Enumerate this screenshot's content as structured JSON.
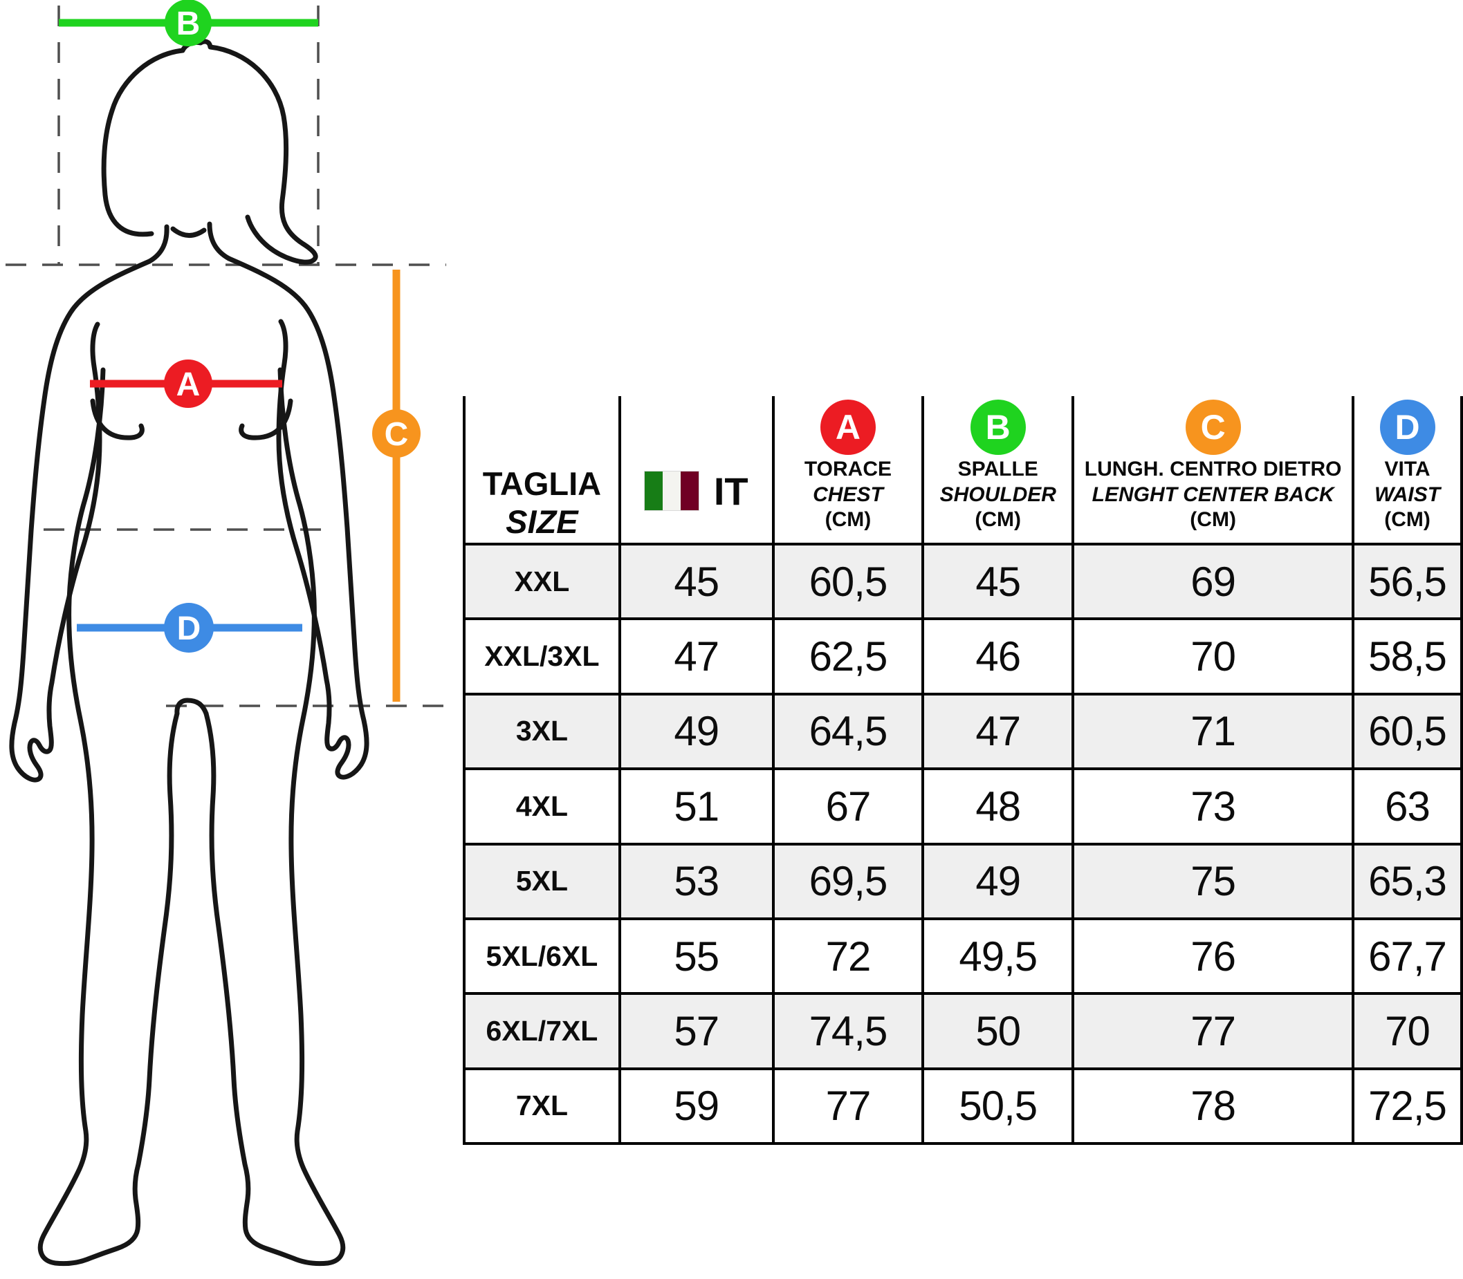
{
  "figure": {
    "labels": [
      {
        "id": "A",
        "color": "#EC1C23"
      },
      {
        "id": "B",
        "color": "#1FD31F"
      },
      {
        "id": "C",
        "color": "#F7941E"
      },
      {
        "id": "D",
        "color": "#3E8BE4"
      }
    ]
  },
  "table": {
    "header": {
      "size_label_it": "TAGLIA",
      "size_label_en": "SIZE",
      "country_code": "IT",
      "flag_colors": [
        "#177D16",
        "#F4F4F0",
        "#700024"
      ],
      "columns": [
        {
          "badge": "A",
          "badge_color": "#EC1C23",
          "title_it": "TORACE",
          "title_en": "CHEST",
          "unit": "(CM)"
        },
        {
          "badge": "B",
          "badge_color": "#1FD31F",
          "title_it": "SPALLE",
          "title_en": "SHOULDER",
          "unit": "(CM)"
        },
        {
          "badge": "C",
          "badge_color": "#F7941E",
          "title_it": "LUNGH. CENTRO DIETRO",
          "title_en": "LENGHT CENTER BACK",
          "unit": "(CM)"
        },
        {
          "badge": "D",
          "badge_color": "#3E8BE4",
          "title_it": "VITA",
          "title_en": "WAIST",
          "unit": "(CM)"
        }
      ]
    },
    "rows": [
      {
        "size": "XXL",
        "it": "45",
        "chest": "60,5",
        "shoulder": "45",
        "center_back": "69",
        "waist": "56,5"
      },
      {
        "size": "XXL/3XL",
        "it": "47",
        "chest": "62,5",
        "shoulder": "46",
        "center_back": "70",
        "waist": "58,5"
      },
      {
        "size": "3XL",
        "it": "49",
        "chest": "64,5",
        "shoulder": "47",
        "center_back": "71",
        "waist": "60,5"
      },
      {
        "size": "4XL",
        "it": "51",
        "chest": "67",
        "shoulder": "48",
        "center_back": "73",
        "waist": "63"
      },
      {
        "size": "5XL",
        "it": "53",
        "chest": "69,5",
        "shoulder": "49",
        "center_back": "75",
        "waist": "65,3"
      },
      {
        "size": "5XL/6XL",
        "it": "55",
        "chest": "72",
        "shoulder": "49,5",
        "center_back": "76",
        "waist": "67,7"
      },
      {
        "size": "6XL/7XL",
        "it": "57",
        "chest": "74,5",
        "shoulder": "50",
        "center_back": "77",
        "waist": "70"
      },
      {
        "size": "7XL",
        "it": "59",
        "chest": "77",
        "shoulder": "50,5",
        "center_back": "78",
        "waist": "72,5"
      }
    ]
  },
  "colors": {
    "row_stripe": "#EFEFEF",
    "border": "#000000",
    "silhouette": "#161616",
    "guide": "#4F4F4F"
  }
}
